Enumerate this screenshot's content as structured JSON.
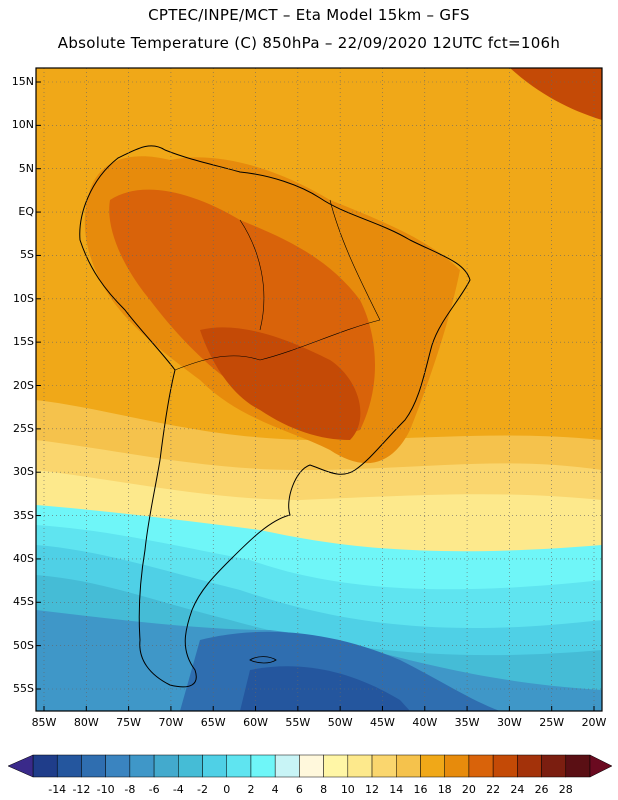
{
  "header": {
    "line1": "CPTEC/INPE/MCT –  Eta Model 15km – GFS",
    "line2": "Absolute Temperature (C) 850hPa – 22/09/2020 12UTC fct=106h"
  },
  "map": {
    "lat_labels": [
      "15N",
      "10N",
      "5N",
      "EQ",
      "5S",
      "10S",
      "15S",
      "20S",
      "25S",
      "30S",
      "35S",
      "40S",
      "45S",
      "50S",
      "55S"
    ],
    "lon_labels": [
      "85W",
      "80W",
      "75W",
      "70W",
      "65W",
      "60W",
      "55W",
      "50W",
      "45W",
      "40W",
      "35W",
      "30W",
      "25W",
      "20W"
    ],
    "lat_values": [
      15,
      10,
      5,
      0,
      -5,
      -10,
      -15,
      -20,
      -25,
      -30,
      -35,
      -40,
      -45,
      -50,
      -55
    ],
    "lon_values": [
      -85,
      -80,
      -75,
      -70,
      -65,
      -60,
      -55,
      -50,
      -45,
      -40,
      -35,
      -30,
      -25,
      -20
    ]
  },
  "colorbar": {
    "labels": [
      "-14",
      "-12",
      "-10",
      "-8",
      "-6",
      "-4",
      "-2",
      "0",
      "2",
      "4",
      "6",
      "8",
      "10",
      "12",
      "14",
      "16",
      "18",
      "20",
      "22",
      "24",
      "26",
      "28"
    ],
    "colors": [
      "#1f3d8a",
      "#24569e",
      "#2f6eb0",
      "#3a84c0",
      "#3f97c8",
      "#43aacd",
      "#45bcd6",
      "#4fd0e6",
      "#5fe4f0",
      "#6ff6f8",
      "#c8f4f6",
      "#fff8dc",
      "#fff6a6",
      "#fde98c",
      "#fad66e",
      "#f5c24c",
      "#f0a818",
      "#e78b0c",
      "#d9630a",
      "#c44a06",
      "#a3320a",
      "#7b1e10",
      "#5a0f14"
    ],
    "over_color": "#6a0a20",
    "under_color": "#3a2a8a"
  }
}
